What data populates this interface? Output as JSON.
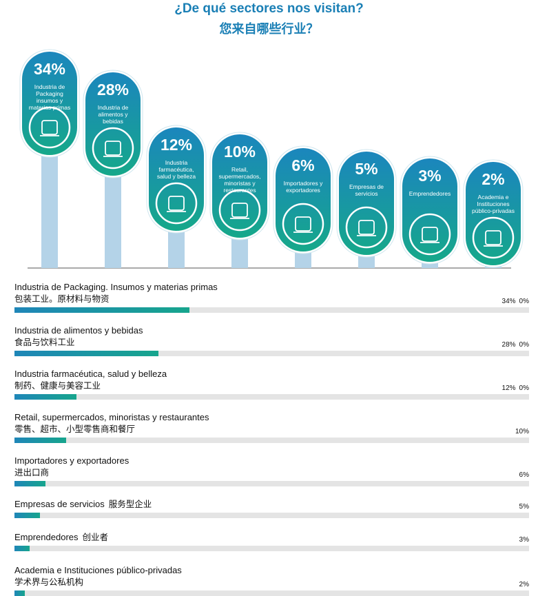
{
  "chart_data": [
    {
      "type": "pins",
      "title": "¿De qué sectores nos visitan?",
      "subtitle": "您来自哪些行业？",
      "categories": [
        "Industria de Packaging insumos y materias primas",
        "Industria de alimentos y bebidas",
        "Industria farmacéutica, salud y belleza",
        "Retail, supermercados, minoristas y restaurantes",
        "Importadores y exportadores",
        "Empresas de servicios",
        "Emprendedores",
        "Academia e Instituciones público-privadas"
      ],
      "values": [
        34,
        28,
        12,
        10,
        6,
        5,
        3,
        2
      ],
      "value_labels": [
        "34%",
        "28%",
        "12%",
        "10%",
        "6%",
        "5%",
        "3%",
        "2%"
      ],
      "color": "#1a9fb0"
    },
    {
      "type": "progress",
      "categories": [
        "Industria de Packaging. Insumos y materias primas",
        "Industria de alimentos y bebidas",
        "Industria farmacéutica, salud y belleza",
        "Retail, supermercados, minoristas y restaurantes",
        "Importadores y exportadores",
        "Empresas de servicios",
        "Emprendedores",
        "Academia e Instituciones público-privadas"
      ],
      "categories_zh": [
        "包装工业。原材料与物资",
        "食品与饮料工业",
        "制药、健康与美容工业",
        "零售、超市、小型零售商和餐厅",
        "进出口商",
        "服务型企业",
        "创业者",
        "学术界与公私机构"
      ],
      "values": [
        34,
        28,
        12,
        10,
        6,
        5,
        3,
        2
      ],
      "value_labels": [
        "34%",
        "28%",
        "12%",
        "10%",
        "6%",
        "5%",
        "3%",
        "2%"
      ],
      "secondary_labels": [
        "0%",
        "0%",
        "0%",
        null,
        null,
        null,
        null,
        null
      ],
      "xlim": [
        0,
        100
      ]
    }
  ]
}
